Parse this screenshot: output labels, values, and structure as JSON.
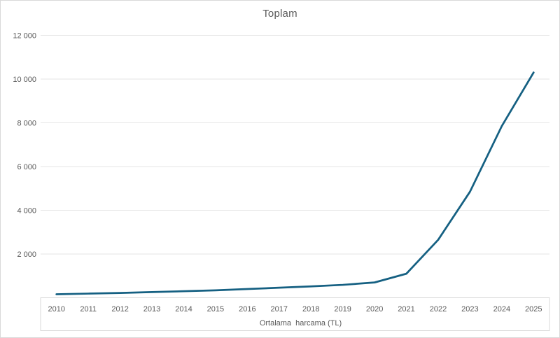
{
  "chart_data": {
    "type": "line",
    "title": "Toplam",
    "xlabel": "Ortalama  harcama (TL)",
    "ylabel": "",
    "categories": [
      "2010",
      "2011",
      "2012",
      "2013",
      "2014",
      "2015",
      "2016",
      "2017",
      "2018",
      "2019",
      "2020",
      "2021",
      "2022",
      "2023",
      "2024",
      "2025"
    ],
    "series": [
      {
        "name": "Toplam",
        "values": [
          160,
          190,
          220,
          260,
          300,
          340,
          400,
          460,
          520,
          590,
          700,
          1100,
          2650,
          4850,
          7850,
          10300
        ]
      }
    ],
    "ylim": [
      0,
      12000
    ],
    "yticks": [
      {
        "value": 2000,
        "label": "2 000"
      },
      {
        "value": 4000,
        "label": "4 000"
      },
      {
        "value": 6000,
        "label": "6 000"
      },
      {
        "value": 8000,
        "label": "8 000"
      },
      {
        "value": 10000,
        "label": "10 000"
      },
      {
        "value": 12000,
        "label": "12 000"
      }
    ],
    "grid": "horizontal",
    "legend": "none",
    "colors": {
      "line": "#156082",
      "grid": "#e6e6e6",
      "axis_text": "#595959",
      "title_text": "#595959",
      "border": "#d9d9d9"
    }
  }
}
